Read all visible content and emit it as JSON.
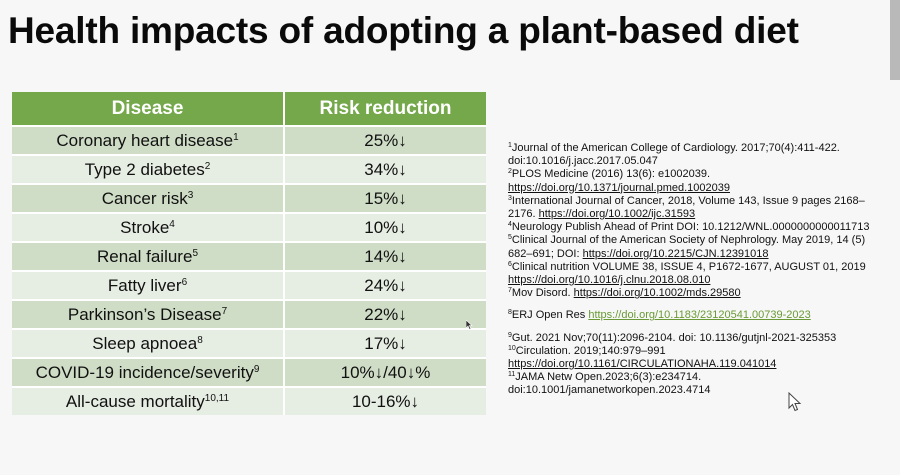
{
  "title": "Health impacts of adopting a plant-based diet",
  "table": {
    "headers": {
      "disease": "Disease",
      "reduction": "Risk reduction"
    },
    "rows": [
      {
        "disease": "Coronary heart disease",
        "sup": "1",
        "reduction": "25%↓"
      },
      {
        "disease": "Type 2 diabetes",
        "sup": "2",
        "reduction": "34%↓"
      },
      {
        "disease": "Cancer risk",
        "sup": "3",
        "reduction": "15%↓"
      },
      {
        "disease": "Stroke",
        "sup": "4",
        "reduction": "10%↓"
      },
      {
        "disease": "Renal failure",
        "sup": "5",
        "reduction": "14%↓"
      },
      {
        "disease": "Fatty liver",
        "sup": "6",
        "reduction": "24%↓"
      },
      {
        "disease": "Parkinson’s Disease",
        "sup": "7",
        "reduction": "22%↓"
      },
      {
        "disease": "Sleep apnoea",
        "sup": "8",
        "reduction": "17%↓"
      },
      {
        "disease": "COVID-19 incidence/severity",
        "sup": "9",
        "reduction": "10%↓/40↓%"
      },
      {
        "disease": "All-cause mortality",
        "sup": "10,11",
        "reduction": "10-16%↓"
      }
    ]
  },
  "references": [
    {
      "n": "1",
      "text": "Journal of the American College of Cardiology. 2017;70(4):411-422. doi:10.1016/j.jacc.2017.05.047",
      "link": ""
    },
    {
      "n": "2",
      "text": "PLOS Medicine (2016) 13(6): e1002039. ",
      "link": "https://doi.org/10.1371/journal.pmed.1002039"
    },
    {
      "n": "3",
      "text": "International Journal of Cancer, 2018, Volume 143, Issue 9 pages 2168–2176. ",
      "link": "https://doi.org/10.1002/ijc.31593"
    },
    {
      "n": "4",
      "text": "Neurology Publish Ahead of Print DOI: 10.1212/WNL.0000000000011713",
      "link": ""
    },
    {
      "n": "5",
      "text": "Clinical Journal of the American Society of Nephrology. May 2019, 14 (5) 682–691; DOI: ",
      "link": "https://doi.org/10.2215/CJN.12391018"
    },
    {
      "n": "6",
      "text": "Clinical nutrition  VOLUME 38, ISSUE 4, P1672-1677, AUGUST 01, 2019 ",
      "link": "https://doi.org/10.1016/j.clnu.2018.08.010"
    },
    {
      "n": "7",
      "text": "Mov Disord. ",
      "link": "https://doi.org/10.1002/mds.29580"
    },
    {
      "n": "8",
      "text": "ERJ Open Res ",
      "link": "https://doi.org/10.1183/23120541.00739-2023"
    },
    {
      "n": "9",
      "text": "Gut. 2021 Nov;70(11):2096-2104. doi: 10.1136/gutjnl-2021-325353",
      "link": ""
    },
    {
      "n": "10",
      "text": "Circulation. 2019;140:979–991 ",
      "link": "https://doi.org/10.1161/CIRCULATIONAHA.119.041014"
    },
    {
      "n": "11",
      "text": "JAMA Netw Open.2023;6(3):e234714. doi:10.1001/jamanetworkopen.2023.4714",
      "link": ""
    }
  ],
  "colors": {
    "header_green": "#74a84a",
    "row_dark": "#cfdcc6",
    "row_light": "#e6ede2",
    "link_green": "#6a9a36"
  }
}
